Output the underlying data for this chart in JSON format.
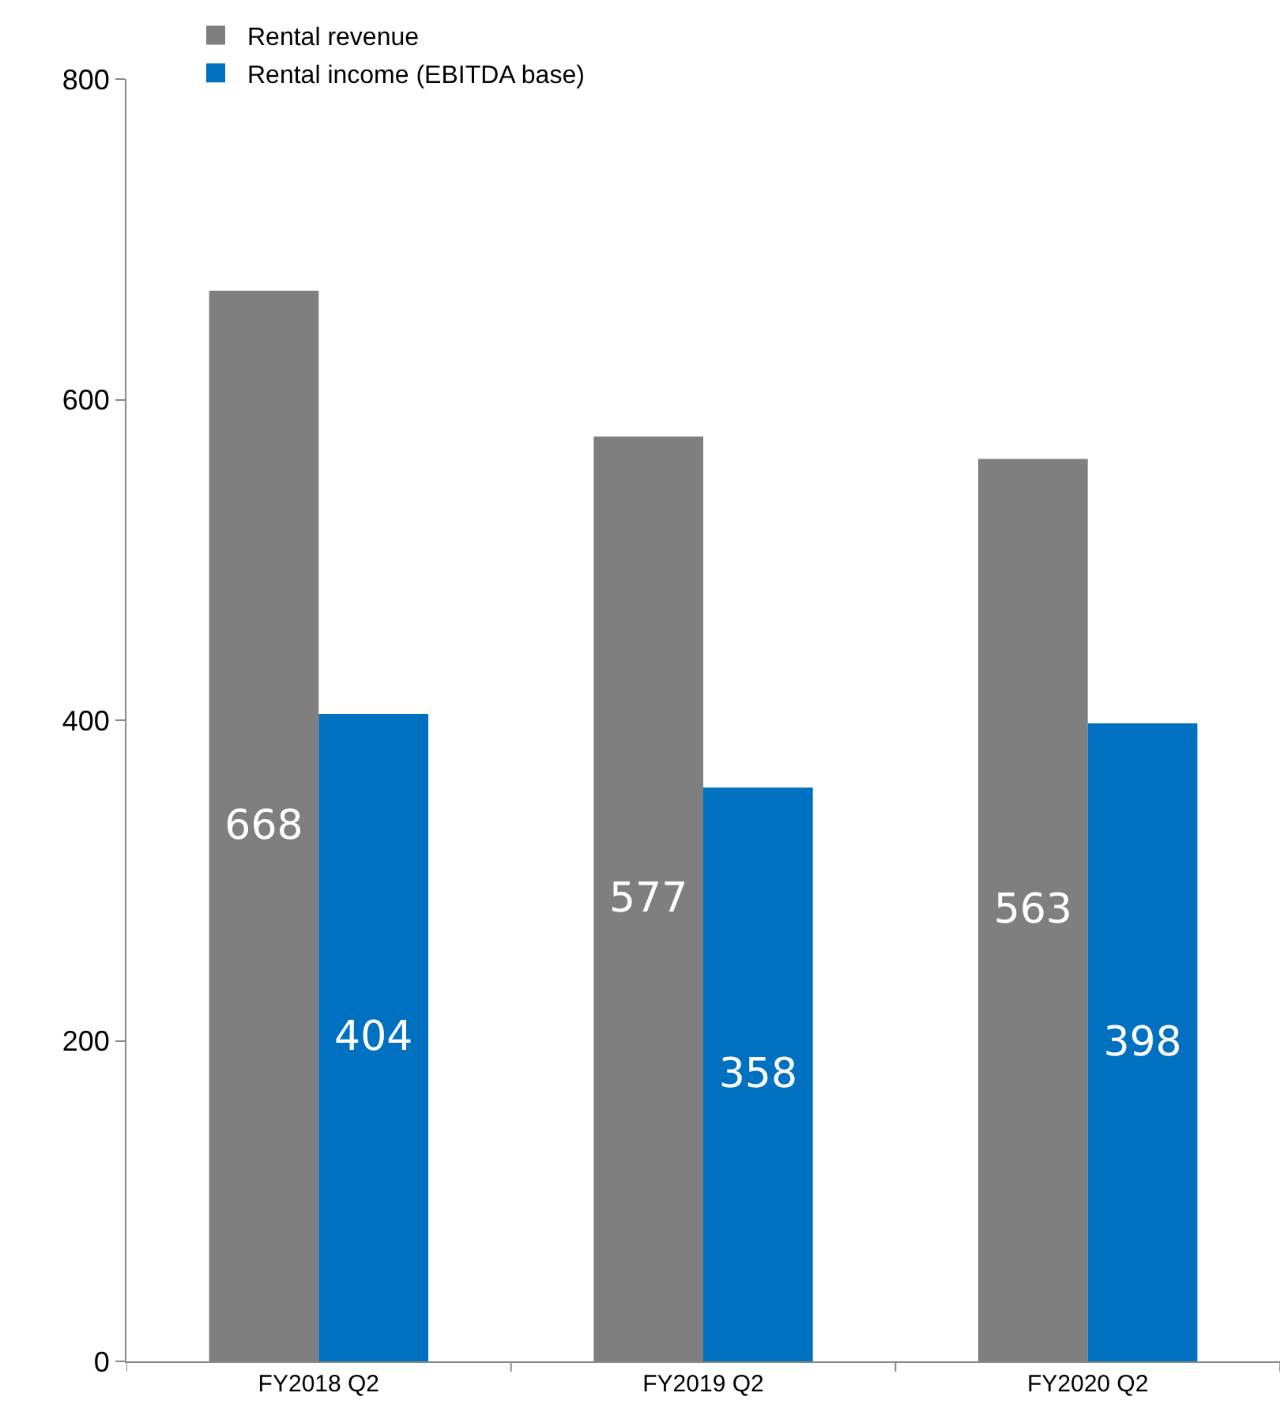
{
  "chart_data": {
    "type": "bar",
    "categories": [
      "FY2018 Q2",
      "FY2019 Q2",
      "FY2020 Q2"
    ],
    "series": [
      {
        "name": "Rental revenue",
        "color": "#7f7f7f",
        "values": [
          668,
          577,
          563
        ]
      },
      {
        "name": "Rental income (EBITDA base)",
        "color": "#0070c0",
        "values": [
          404,
          358,
          398
        ]
      }
    ],
    "ylim": [
      0,
      800
    ],
    "yticks": [
      0,
      200,
      400,
      600,
      800
    ],
    "data_labels": true,
    "grid": false,
    "legend": "top left"
  }
}
